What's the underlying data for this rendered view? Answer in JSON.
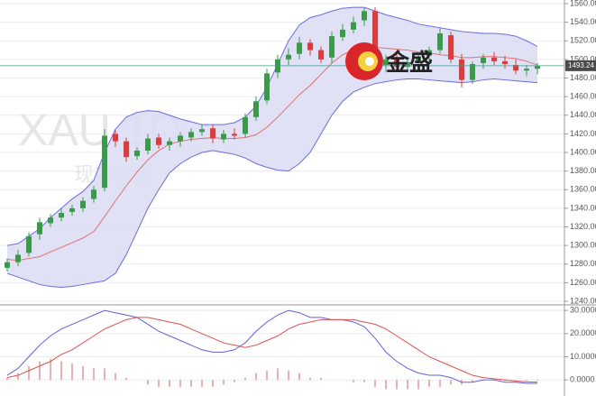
{
  "chart_data": [
    {
      "type": "candlestick",
      "watermark": "XAU 1D",
      "watermark_sub": "现货黄金",
      "logo_text": "金盛",
      "last_price": 1493.24,
      "up_color": "#3a9a4a",
      "down_color": "#e03a3a",
      "open": [
        1276,
        1282,
        1292,
        1312,
        1324,
        1330,
        1336,
        1340,
        1350,
        1362,
        1420,
        1412,
        1396,
        1402,
        1416,
        1408,
        1412,
        1416,
        1422,
        1426,
        1414,
        1420,
        1420,
        1438,
        1456,
        1486,
        1500,
        1506,
        1518,
        1510,
        1502,
        1524,
        1532,
        1542,
        1552,
        1494,
        1500,
        1492,
        1496,
        1504,
        1510,
        1526,
        1500,
        1478,
        1496,
        1502,
        1498,
        1494,
        1488,
        1490
      ],
      "high": [
        1286,
        1295,
        1314,
        1330,
        1334,
        1340,
        1344,
        1352,
        1364,
        1425,
        1424,
        1416,
        1406,
        1420,
        1420,
        1416,
        1422,
        1426,
        1430,
        1430,
        1424,
        1426,
        1442,
        1460,
        1490,
        1505,
        1512,
        1524,
        1522,
        1514,
        1530,
        1538,
        1546,
        1556,
        1556,
        1505,
        1506,
        1500,
        1506,
        1514,
        1534,
        1530,
        1506,
        1498,
        1506,
        1508,
        1504,
        1500,
        1494,
        1496
      ],
      "low": [
        1272,
        1278,
        1288,
        1306,
        1320,
        1326,
        1332,
        1336,
        1346,
        1358,
        1406,
        1390,
        1392,
        1398,
        1404,
        1402,
        1406,
        1412,
        1418,
        1410,
        1410,
        1414,
        1416,
        1434,
        1452,
        1480,
        1494,
        1500,
        1504,
        1496,
        1496,
        1520,
        1528,
        1536,
        1490,
        1486,
        1488,
        1486,
        1490,
        1498,
        1506,
        1496,
        1470,
        1474,
        1490,
        1494,
        1490,
        1484,
        1482,
        1484
      ],
      "close": [
        1282,
        1290,
        1310,
        1325,
        1330,
        1335,
        1340,
        1348,
        1360,
        1418,
        1412,
        1395,
        1402,
        1415,
        1408,
        1412,
        1418,
        1422,
        1425,
        1415,
        1420,
        1418,
        1438,
        1455,
        1485,
        1500,
        1505,
        1518,
        1510,
        1500,
        1525,
        1532,
        1540,
        1552,
        1495,
        1500,
        1492,
        1497,
        1503,
        1510,
        1528,
        1500,
        1478,
        1495,
        1502,
        1498,
        1495,
        1488,
        1490,
        1493
      ],
      "bands": {
        "color": "#6b6be0",
        "fill": "#dcdcf4",
        "middle_color": "#e07070",
        "upper": [
          1300,
          1302,
          1310,
          1318,
          1330,
          1340,
          1350,
          1358,
          1370,
          1400,
          1425,
          1438,
          1443,
          1445,
          1444,
          1440,
          1436,
          1433,
          1430,
          1430,
          1430,
          1432,
          1438,
          1450,
          1470,
          1495,
          1520,
          1537,
          1545,
          1548,
          1552,
          1555,
          1556,
          1556,
          1552,
          1548,
          1545,
          1542,
          1538,
          1536,
          1534,
          1532,
          1530,
          1529,
          1528,
          1528,
          1527,
          1525,
          1520,
          1514
        ],
        "middle": [
          1285,
          1284,
          1286,
          1288,
          1293,
          1298,
          1303,
          1308,
          1315,
          1331,
          1348,
          1364,
          1379,
          1392,
          1402,
          1409,
          1412,
          1414,
          1415,
          1416,
          1415,
          1415,
          1416,
          1419,
          1427,
          1438,
          1450,
          1462,
          1472,
          1484,
          1496,
          1505,
          1510,
          1513,
          1513,
          1512,
          1511,
          1510,
          1508,
          1507,
          1505,
          1504,
          1502,
          1502,
          1503,
          1503,
          1502,
          1501,
          1498,
          1494
        ],
        "lower": [
          1270,
          1266,
          1262,
          1258,
          1256,
          1255,
          1256,
          1258,
          1260,
          1262,
          1270,
          1290,
          1315,
          1340,
          1360,
          1378,
          1388,
          1395,
          1400,
          1402,
          1400,
          1398,
          1394,
          1388,
          1384,
          1381,
          1380,
          1388,
          1400,
          1420,
          1440,
          1455,
          1465,
          1470,
          1474,
          1476,
          1478,
          1479,
          1479,
          1478,
          1477,
          1476,
          1475,
          1476,
          1478,
          1479,
          1478,
          1477,
          1476,
          1475
        ]
      },
      "ylim": [
        1240,
        1560
      ],
      "yticks": [
        {
          "value": 1240,
          "label": "1240.00"
        },
        {
          "value": 1260,
          "label": "1260.00"
        },
        {
          "value": 1280,
          "label": "1280.00"
        },
        {
          "value": 1300,
          "label": "1300.00"
        },
        {
          "value": 1320,
          "label": "1320.00"
        },
        {
          "value": 1340,
          "label": "1340.00"
        },
        {
          "value": 1360,
          "label": "1360.00"
        },
        {
          "value": 1380,
          "label": "1380.00"
        },
        {
          "value": 1400,
          "label": "1400.00"
        },
        {
          "value": 1420,
          "label": "1420.00"
        },
        {
          "value": 1440,
          "label": "1440.00"
        },
        {
          "value": 1460,
          "label": "1460.00"
        },
        {
          "value": 1480,
          "label": "1480.00"
        },
        {
          "value": 1500,
          "label": "1500.00"
        },
        {
          "value": 1520,
          "label": "1520.00"
        },
        {
          "value": 1540,
          "label": "1540.00"
        },
        {
          "value": 1560,
          "label": "1560.00"
        }
      ],
      "grid": true
    },
    {
      "type": "macd",
      "series": [
        {
          "color": "#6060e0",
          "values": [
            2,
            5,
            10,
            15,
            19,
            22,
            24,
            26,
            28,
            30,
            29,
            28,
            27,
            24,
            21,
            19,
            17,
            15,
            13,
            12,
            12,
            13,
            16,
            21,
            25,
            28,
            30,
            29,
            27,
            27,
            26,
            26,
            25,
            23,
            18,
            12,
            8,
            5,
            3,
            2,
            2,
            1,
            -1,
            -1,
            0,
            0,
            -1,
            -1,
            -1.5,
            -1.5
          ]
        },
        {
          "color": "#e05050",
          "values": [
            1,
            2,
            4,
            6,
            8,
            11,
            13,
            16,
            19,
            22,
            24,
            26,
            27,
            27,
            26,
            25,
            24,
            22,
            20,
            18,
            16,
            15,
            14,
            15,
            17,
            19,
            22,
            24,
            25,
            26,
            26,
            26,
            26,
            25,
            24,
            22,
            19,
            16,
            13,
            10,
            8,
            6,
            4,
            2,
            1,
            0.5,
            0,
            -0.5,
            -0.8,
            -1
          ]
        }
      ],
      "histogram": {
        "color": "#e07a7a",
        "values": [
          1,
          3,
          6,
          8,
          9,
          8,
          7,
          6,
          5,
          5,
          3,
          1,
          0,
          -2,
          -3,
          -3,
          -3,
          -3,
          -3,
          -3,
          -2,
          -1,
          1,
          3,
          4,
          5,
          4,
          3,
          1,
          1,
          0,
          0,
          -1,
          -1,
          -3,
          -4,
          -4,
          -4,
          -4,
          -3,
          -3,
          -2,
          -2,
          -1,
          -0.5,
          -0.3,
          -0.5,
          -0.3,
          -0.4,
          -0.3
        ]
      },
      "ylim": [
        -5,
        32
      ],
      "yticks": [
        {
          "value": 0,
          "label": "0.0000"
        },
        {
          "value": 10,
          "label": "10.0000"
        },
        {
          "value": 20,
          "label": "20.0000"
        },
        {
          "value": 30,
          "label": "30.0000"
        }
      ],
      "grid": true
    }
  ]
}
